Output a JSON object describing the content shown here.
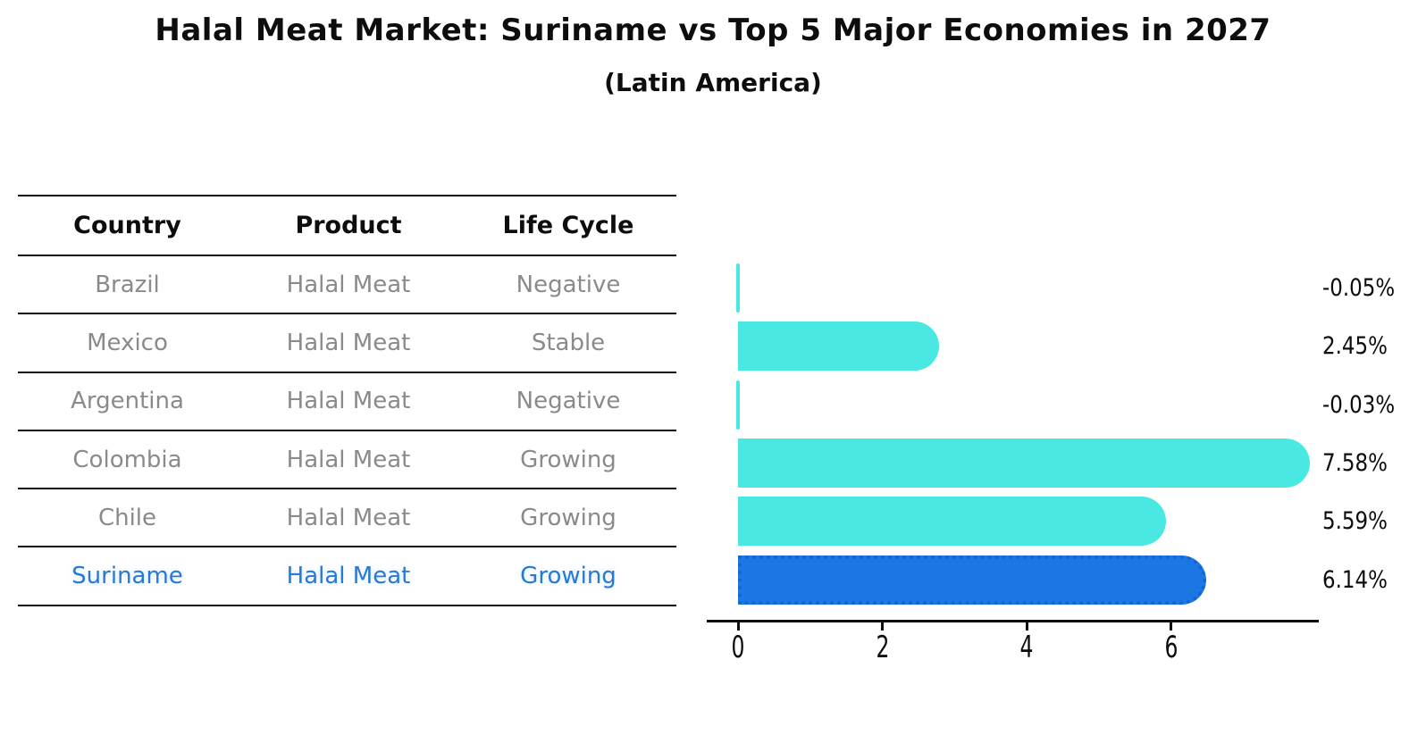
{
  "title": "Halal Meat Market: Suriname vs Top 5 Major Economies in 2027",
  "subtitle": "(Latin America)",
  "table": {
    "headers": [
      "Country",
      "Product",
      "Life Cycle"
    ],
    "rows": [
      {
        "country": "Brazil",
        "product": "Halal Meat",
        "life_cycle": "Negative",
        "highlight": false
      },
      {
        "country": "Mexico",
        "product": "Halal Meat",
        "life_cycle": "Stable",
        "highlight": false
      },
      {
        "country": "Argentina",
        "product": "Halal Meat",
        "life_cycle": "Negative",
        "highlight": false
      },
      {
        "country": "Colombia",
        "product": "Halal Meat",
        "life_cycle": "Growing",
        "highlight": false
      },
      {
        "country": "Chile",
        "product": "Halal Meat",
        "life_cycle": "Growing",
        "highlight": false
      },
      {
        "country": "Suriname",
        "product": "Halal Meat",
        "life_cycle": "Growing",
        "highlight": true
      }
    ]
  },
  "chart_data": {
    "type": "bar",
    "orientation": "horizontal",
    "title": "Halal Meat Market: Suriname vs Top 5 Major Economies in 2027",
    "subtitle": "(Latin America)",
    "categories": [
      "Brazil",
      "Mexico",
      "Argentina",
      "Colombia",
      "Chile",
      "Suriname"
    ],
    "values": [
      -0.05,
      2.45,
      -0.03,
      7.58,
      5.59,
      6.14
    ],
    "value_labels": [
      "-0.05%",
      "2.45%",
      "-0.03%",
      "7.58%",
      "5.59%",
      "6.14%"
    ],
    "unit": "%",
    "x_ticks": [
      0,
      2,
      4,
      6
    ],
    "xlim": [
      -0.43,
      8.04
    ],
    "highlight_index": 5,
    "grid": false,
    "legend": false
  },
  "colors": {
    "ink": "#0d0d0d",
    "muted_text": "#8a8a8a",
    "bar": "#4ae8e3",
    "highlight_bar": "#1c77e4",
    "highlight_edge": "#1464d8",
    "highlight_text": "#2878d6",
    "background": "#ffffff"
  }
}
